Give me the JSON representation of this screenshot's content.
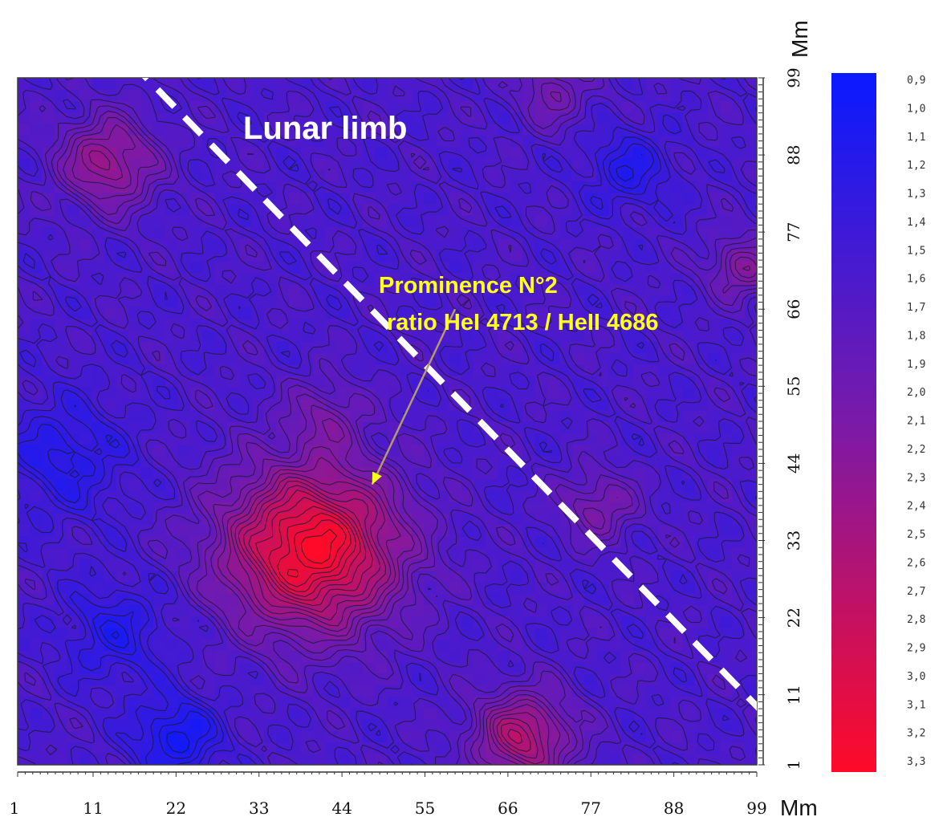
{
  "chart_data": {
    "type": "heatmap",
    "title": "",
    "xlabel": "Mm",
    "ylabel": "Mm",
    "x_ticks": [
      "1",
      "11",
      "22",
      "33",
      "44",
      "55",
      "66",
      "77",
      "88",
      "99"
    ],
    "y_ticks": [
      "1",
      "11",
      "22",
      "33",
      "44",
      "55",
      "66",
      "77",
      "88",
      "99"
    ],
    "xlim": [
      1,
      99
    ],
    "ylim": [
      1,
      99
    ],
    "colorbar": {
      "labels": [
        "0,9",
        "1,0",
        "1,1",
        "1,2",
        "1,3",
        "1,4",
        "1,5",
        "1,6",
        "1,7",
        "1,8",
        "1,9",
        "2,0",
        "2,1",
        "2,2",
        "2,3",
        "2,4",
        "2,5",
        "2,6",
        "2,7",
        "2,8",
        "2,9",
        "3,0",
        "3,1",
        "3,2",
        "3,3"
      ],
      "min": 0.9,
      "max": 3.3,
      "color_min": "#0a1aff",
      "color_mid": "#7a1aa8",
      "color_max": "#ff0a28"
    },
    "background_level": 1.6,
    "peaks": [
      {
        "x": 40,
        "y": 32,
        "value": 3.3,
        "spread": 8.0
      },
      {
        "x": 13,
        "y": 87,
        "value": 2.4,
        "spread": 4.5
      },
      {
        "x": 68,
        "y": 5,
        "value": 2.6,
        "spread": 4.5
      },
      {
        "x": 78,
        "y": 38,
        "value": 2.1,
        "spread": 3.5
      },
      {
        "x": 97,
        "y": 72,
        "value": 2.2,
        "spread": 3.0
      },
      {
        "x": 42,
        "y": 51,
        "value": 2.0,
        "spread": 3.5
      },
      {
        "x": 72,
        "y": 97,
        "value": 2.0,
        "spread": 3.5
      }
    ],
    "troughs": [
      {
        "x": 22,
        "y": 5,
        "value": 1.0,
        "spread": 4.0
      },
      {
        "x": 7,
        "y": 45,
        "value": 1.2,
        "spread": 6.0
      },
      {
        "x": 82,
        "y": 86,
        "value": 1.2,
        "spread": 4.0
      },
      {
        "x": 14,
        "y": 20,
        "value": 1.2,
        "spread": 5.0
      }
    ],
    "annotations": {
      "lunar_limb": "Lunar limb",
      "prominence_line1": "Prominence N°2",
      "prominence_line2": "ratio HeI 4713 / HeII 4686"
    },
    "limb_line": {
      "start": [
        16,
        99
      ],
      "end": [
        99,
        7
      ]
    },
    "arrow": {
      "from": [
        59,
        66
      ],
      "to": [
        48,
        41
      ]
    },
    "colors": {
      "limb_line": "#ffffff",
      "limb_text": "#ffffff",
      "prominence_text": "#ffff1a",
      "arrow": "#b49a6e",
      "contour": "#1a1a2e"
    }
  }
}
